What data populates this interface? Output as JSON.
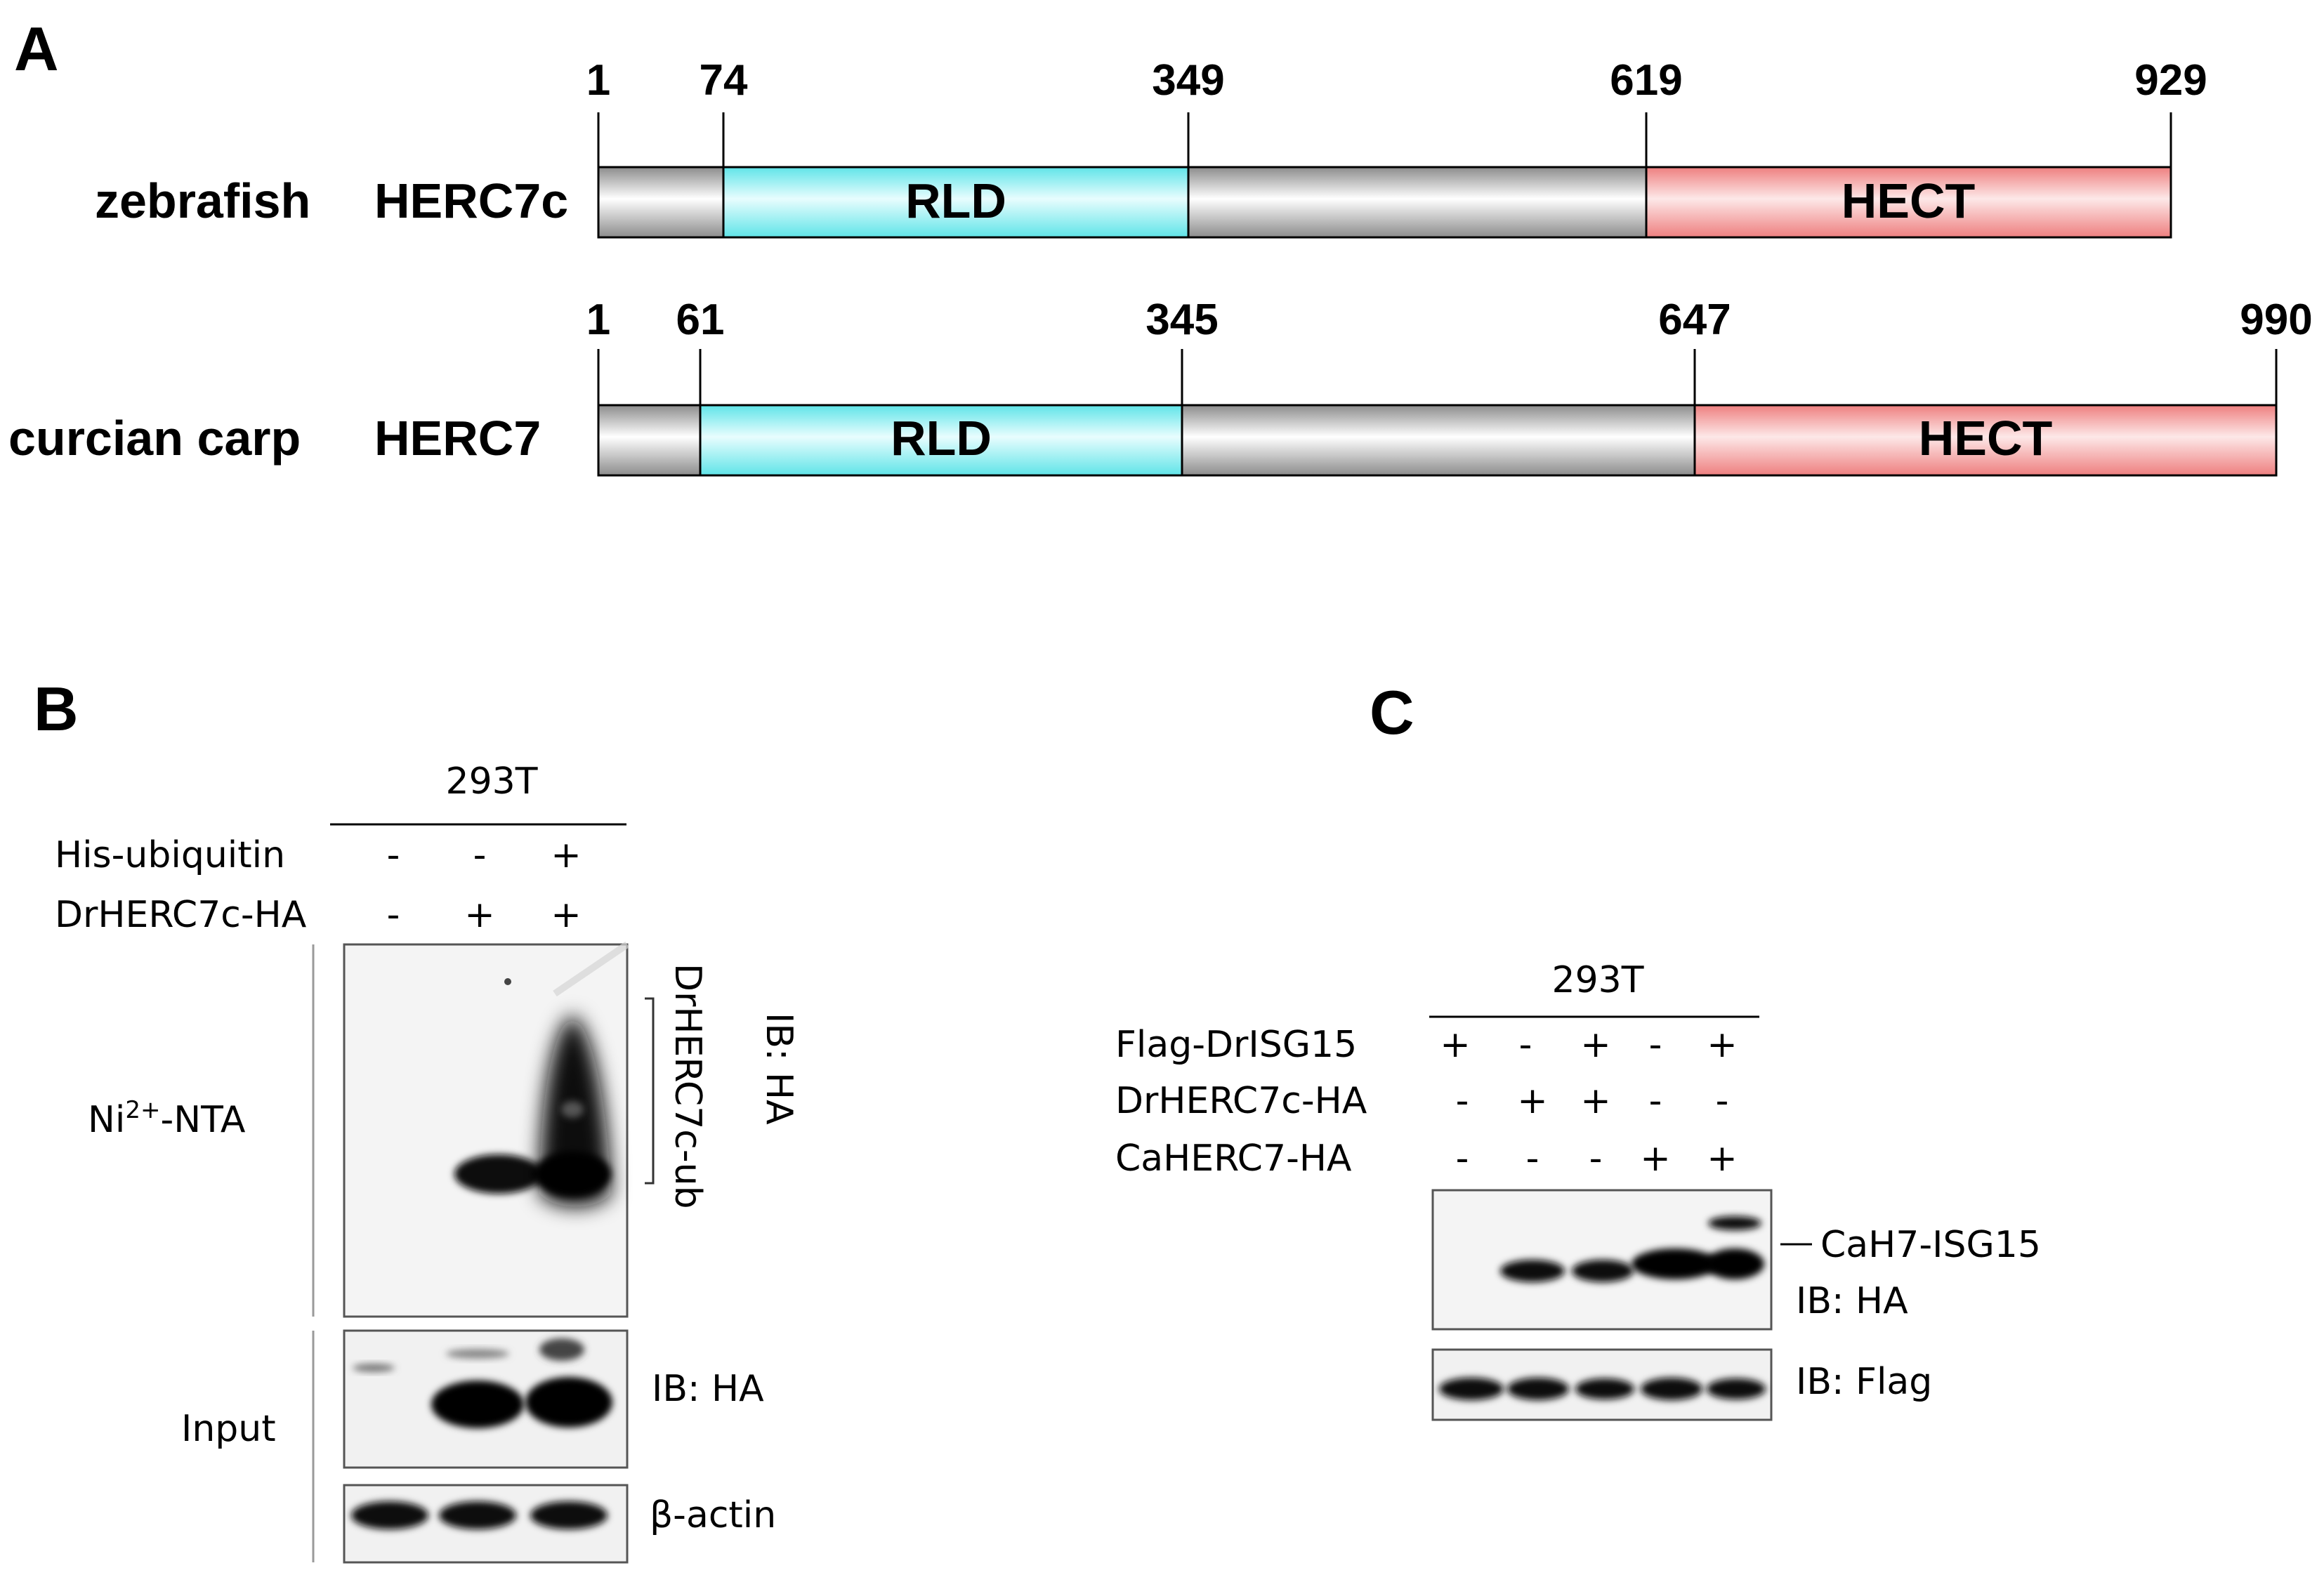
{
  "panel_a": {
    "letter": "A",
    "proteins": [
      {
        "species": "zebrafish",
        "name": "HERC7c",
        "positions": [
          "1",
          "74",
          "349",
          "619",
          "929"
        ],
        "domains": [
          {
            "label": "RLD",
            "start": 74,
            "end": 349,
            "color": "#8ef3f5"
          },
          {
            "label": "HECT",
            "start": 619,
            "end": 929,
            "color": "#f28e8e"
          }
        ],
        "length": 929
      },
      {
        "species": "curcian carp",
        "name": "HERC7",
        "positions": [
          "1",
          "61",
          "345",
          "647",
          "990"
        ],
        "domains": [
          {
            "label": "RLD",
            "start": 61,
            "end": 345,
            "color": "#8ef3f5"
          },
          {
            "label": "HECT",
            "start": 647,
            "end": 990,
            "color": "#f28e8e"
          }
        ],
        "length": 990
      }
    ],
    "backbone_color": "#b8b8b8"
  },
  "panel_b": {
    "letter": "B",
    "cell_line": "293T",
    "rows": [
      {
        "label": "His-ubiquitin",
        "signs": [
          "-",
          "-",
          "+"
        ]
      },
      {
        "label": "DrHERC7c-HA",
        "signs": [
          "-",
          "+",
          "+"
        ]
      }
    ],
    "ni_label_main": "Ni",
    "ni_label_sup": "2+",
    "ni_label_rest": "-NTA",
    "bracket_label": "DrHERC7c-ub",
    "ib_ha_top": "IB: HA",
    "input_label": "Input",
    "ib_ha_input": "IB: HA",
    "actin_label": "β-actin"
  },
  "panel_c": {
    "letter": "C",
    "cell_line": "293T",
    "rows": [
      {
        "label": "Flag-DrISG15",
        "signs": [
          "+",
          "-",
          "+",
          "-",
          "+"
        ]
      },
      {
        "label": "DrHERC7c-HA",
        "signs": [
          "-",
          "+",
          "+",
          "-",
          "-"
        ]
      },
      {
        "label": "CaHERC7-HA",
        "signs": [
          "-",
          "-",
          "-",
          "+",
          "+"
        ]
      }
    ],
    "conjugate_label": "CaH7-ISG15",
    "ib_ha": "IB: HA",
    "ib_flag": "IB: Flag"
  }
}
